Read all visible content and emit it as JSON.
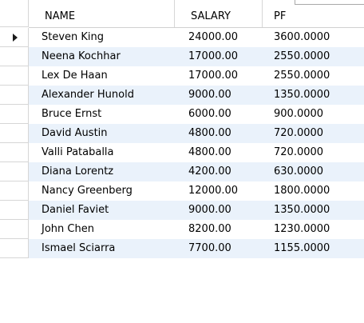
{
  "columns": {
    "name": "NAME",
    "salary": "SALARY",
    "pf": "PF"
  },
  "rows": [
    {
      "name": "Steven King",
      "salary": "24000.00",
      "pf": "3600.0000"
    },
    {
      "name": "Neena Kochhar",
      "salary": "17000.00",
      "pf": "2550.0000"
    },
    {
      "name": "Lex De Haan",
      "salary": "17000.00",
      "pf": "2550.0000"
    },
    {
      "name": "Alexander Hunold",
      "salary": "9000.00",
      "pf": "1350.0000"
    },
    {
      "name": "Bruce Ernst",
      "salary": "6000.00",
      "pf": "900.0000"
    },
    {
      "name": "David Austin",
      "salary": "4800.00",
      "pf": "720.0000"
    },
    {
      "name": "Valli Pataballa",
      "salary": "4800.00",
      "pf": "720.0000"
    },
    {
      "name": "Diana Lorentz",
      "salary": "4200.00",
      "pf": "630.0000"
    },
    {
      "name": "Nancy Greenberg",
      "salary": "12000.00",
      "pf": "1800.0000"
    },
    {
      "name": "Daniel Faviet",
      "salary": "9000.00",
      "pf": "1350.0000"
    },
    {
      "name": "John Chen",
      "salary": "8200.00",
      "pf": "1230.0000"
    },
    {
      "name": "Ismael Sciarra",
      "salary": "7700.00",
      "pf": "1155.0000"
    }
  ],
  "current_row": 0,
  "colors": {
    "alt_row": "#eaf2fb",
    "grid_line": "#d6d6d6"
  },
  "icons": {
    "current_row_marker": "play-triangle-icon"
  }
}
